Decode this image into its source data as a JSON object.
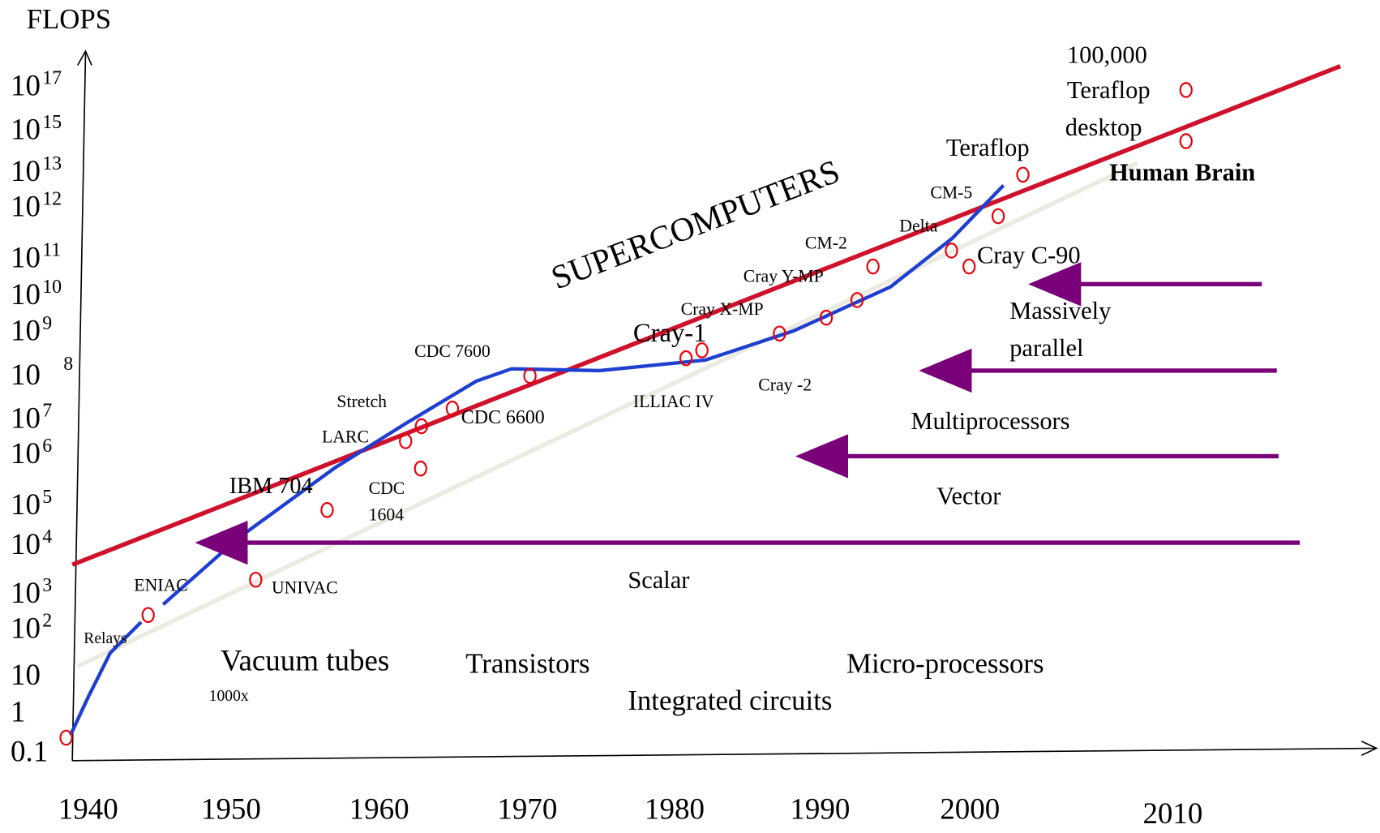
{
  "y_axis": {
    "title": "FLOPS",
    "labels": [
      {
        "text": "10",
        "sup": "17"
      },
      {
        "text": "10",
        "sup": "15"
      },
      {
        "text": "10",
        "sup": "13"
      },
      {
        "text": "10",
        "sup": "12"
      },
      {
        "text": "10",
        "sup": "11"
      },
      {
        "text": "10",
        "sup": "10"
      },
      {
        "text": "10",
        "sup": "9"
      },
      {
        "text": "10",
        "sup": "8"
      },
      {
        "text": "10",
        "sup": "7"
      },
      {
        "text": "10",
        "sup": "6"
      },
      {
        "text": "10",
        "sup": "5"
      },
      {
        "text": "10",
        "sup": "4"
      },
      {
        "text": "10",
        "sup": "3"
      },
      {
        "text": "10",
        "sup": "2"
      },
      {
        "text": "10"
      },
      {
        "text": "1"
      },
      {
        "text": "0.1"
      }
    ]
  },
  "x_axis": {
    "labels": [
      "1940",
      "1950",
      "1960",
      "1970",
      "1980",
      "1990",
      "2000",
      "2010"
    ]
  },
  "annotations": [
    "100,000",
    "Teraflop",
    "desktop",
    "Human Brain",
    "Teraflop",
    "CM-5",
    "Delta",
    "CM-2",
    "Cray Y-MP",
    "Cray X-MP",
    "Cray-1",
    "CDC 7600",
    "Stretch",
    "CDC 6600",
    "LARC",
    "IBM 704",
    "CDC",
    "1604",
    "ENIAC",
    "UNIVAC",
    "Relays",
    "Vacuum tubes",
    "1000x",
    "Transistors",
    "Integrated circuits",
    "Micro-processors",
    "Scalar",
    "Vector",
    "Multiprocessors",
    "Massively",
    "parallel",
    "Cray C-90",
    "ILLIAC IV",
    "Cray -2"
  ],
  "banner": "SUPERCOMPUTERS"
}
